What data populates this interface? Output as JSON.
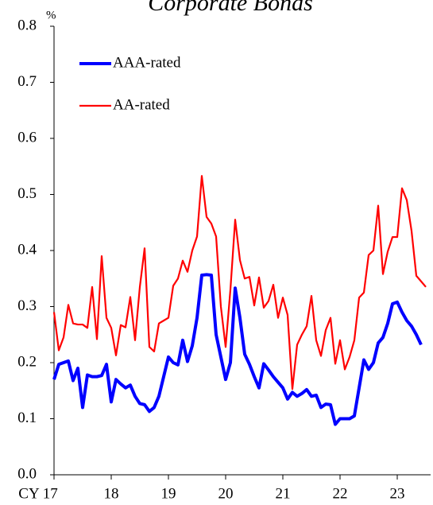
{
  "chart_data": {
    "type": "line",
    "title": "Corporate Bonds",
    "y_unit": "%",
    "categories": [
      "CY 17",
      null,
      null,
      null,
      null,
      null,
      null,
      null,
      null,
      null,
      null,
      null,
      "18",
      null,
      null,
      null,
      null,
      null,
      null,
      null,
      null,
      null,
      null,
      null,
      "19",
      null,
      null,
      null,
      null,
      null,
      null,
      null,
      null,
      null,
      null,
      null,
      "20",
      null,
      null,
      null,
      null,
      null,
      null,
      null,
      null,
      null,
      null,
      null,
      "21",
      null,
      null,
      null,
      null,
      null,
      null,
      null,
      null,
      null,
      null,
      null,
      "22",
      null,
      null,
      null,
      null,
      null,
      null,
      null,
      null,
      null,
      null,
      null,
      "23",
      null,
      null,
      null,
      null,
      null,
      null
    ],
    "series": [
      {
        "name": "AAA-rated",
        "color": "#0000ff",
        "values": [
          0.17,
          0.197,
          0.2,
          0.203,
          0.168,
          0.19,
          0.12,
          0.178,
          0.175,
          0.175,
          0.177,
          0.197,
          0.13,
          0.17,
          0.162,
          0.155,
          0.16,
          0.14,
          0.127,
          0.125,
          0.113,
          0.12,
          0.14,
          0.175,
          0.21,
          0.2,
          0.196,
          0.24,
          0.202,
          0.23,
          0.28,
          0.356,
          0.357,
          0.356,
          0.25,
          0.21,
          0.17,
          0.2,
          0.333,
          0.28,
          0.215,
          0.197,
          0.175,
          0.155,
          0.198,
          0.187,
          0.175,
          0.165,
          0.155,
          0.135,
          0.147,
          0.14,
          0.145,
          0.152,
          0.14,
          0.142,
          0.12,
          0.126,
          0.125,
          0.09,
          0.1,
          0.1,
          0.1,
          0.105,
          0.155,
          0.205,
          0.188,
          0.2,
          0.235,
          0.245,
          0.27,
          0.305,
          0.308,
          0.29,
          0.275,
          0.265,
          0.25,
          0.232,
          null
        ]
      },
      {
        "name": "AA-rated",
        "color": "#ff0000",
        "values": [
          0.29,
          0.222,
          0.245,
          0.303,
          0.27,
          0.268,
          0.268,
          0.262,
          0.335,
          0.242,
          0.39,
          0.28,
          0.262,
          0.213,
          0.267,
          0.263,
          0.317,
          0.24,
          0.335,
          0.404,
          0.228,
          0.22,
          0.27,
          0.275,
          0.28,
          0.337,
          0.35,
          0.382,
          0.362,
          0.4,
          0.425,
          0.533,
          0.46,
          0.448,
          0.425,
          0.3,
          0.228,
          0.33,
          0.455,
          0.383,
          0.35,
          0.353,
          0.302,
          0.352,
          0.298,
          0.31,
          0.339,
          0.28,
          0.316,
          0.285,
          0.153,
          0.232,
          0.25,
          0.265,
          0.319,
          0.24,
          0.212,
          0.258,
          0.28,
          0.198,
          0.24,
          0.188,
          0.21,
          0.24,
          0.316,
          0.325,
          0.392,
          0.4,
          0.48,
          0.358,
          0.398,
          0.424,
          0.424,
          0.511,
          0.49,
          0.435,
          0.355,
          0.345,
          0.335
        ]
      }
    ],
    "ylim": [
      0,
      0.8
    ],
    "yticks": [
      {
        "value": 0,
        "label": "0.0"
      },
      0.1,
      0.2,
      0.3,
      0.4,
      0.5,
      0.6,
      0.7,
      0.8
    ],
    "grid": false,
    "legend": "upper left"
  }
}
